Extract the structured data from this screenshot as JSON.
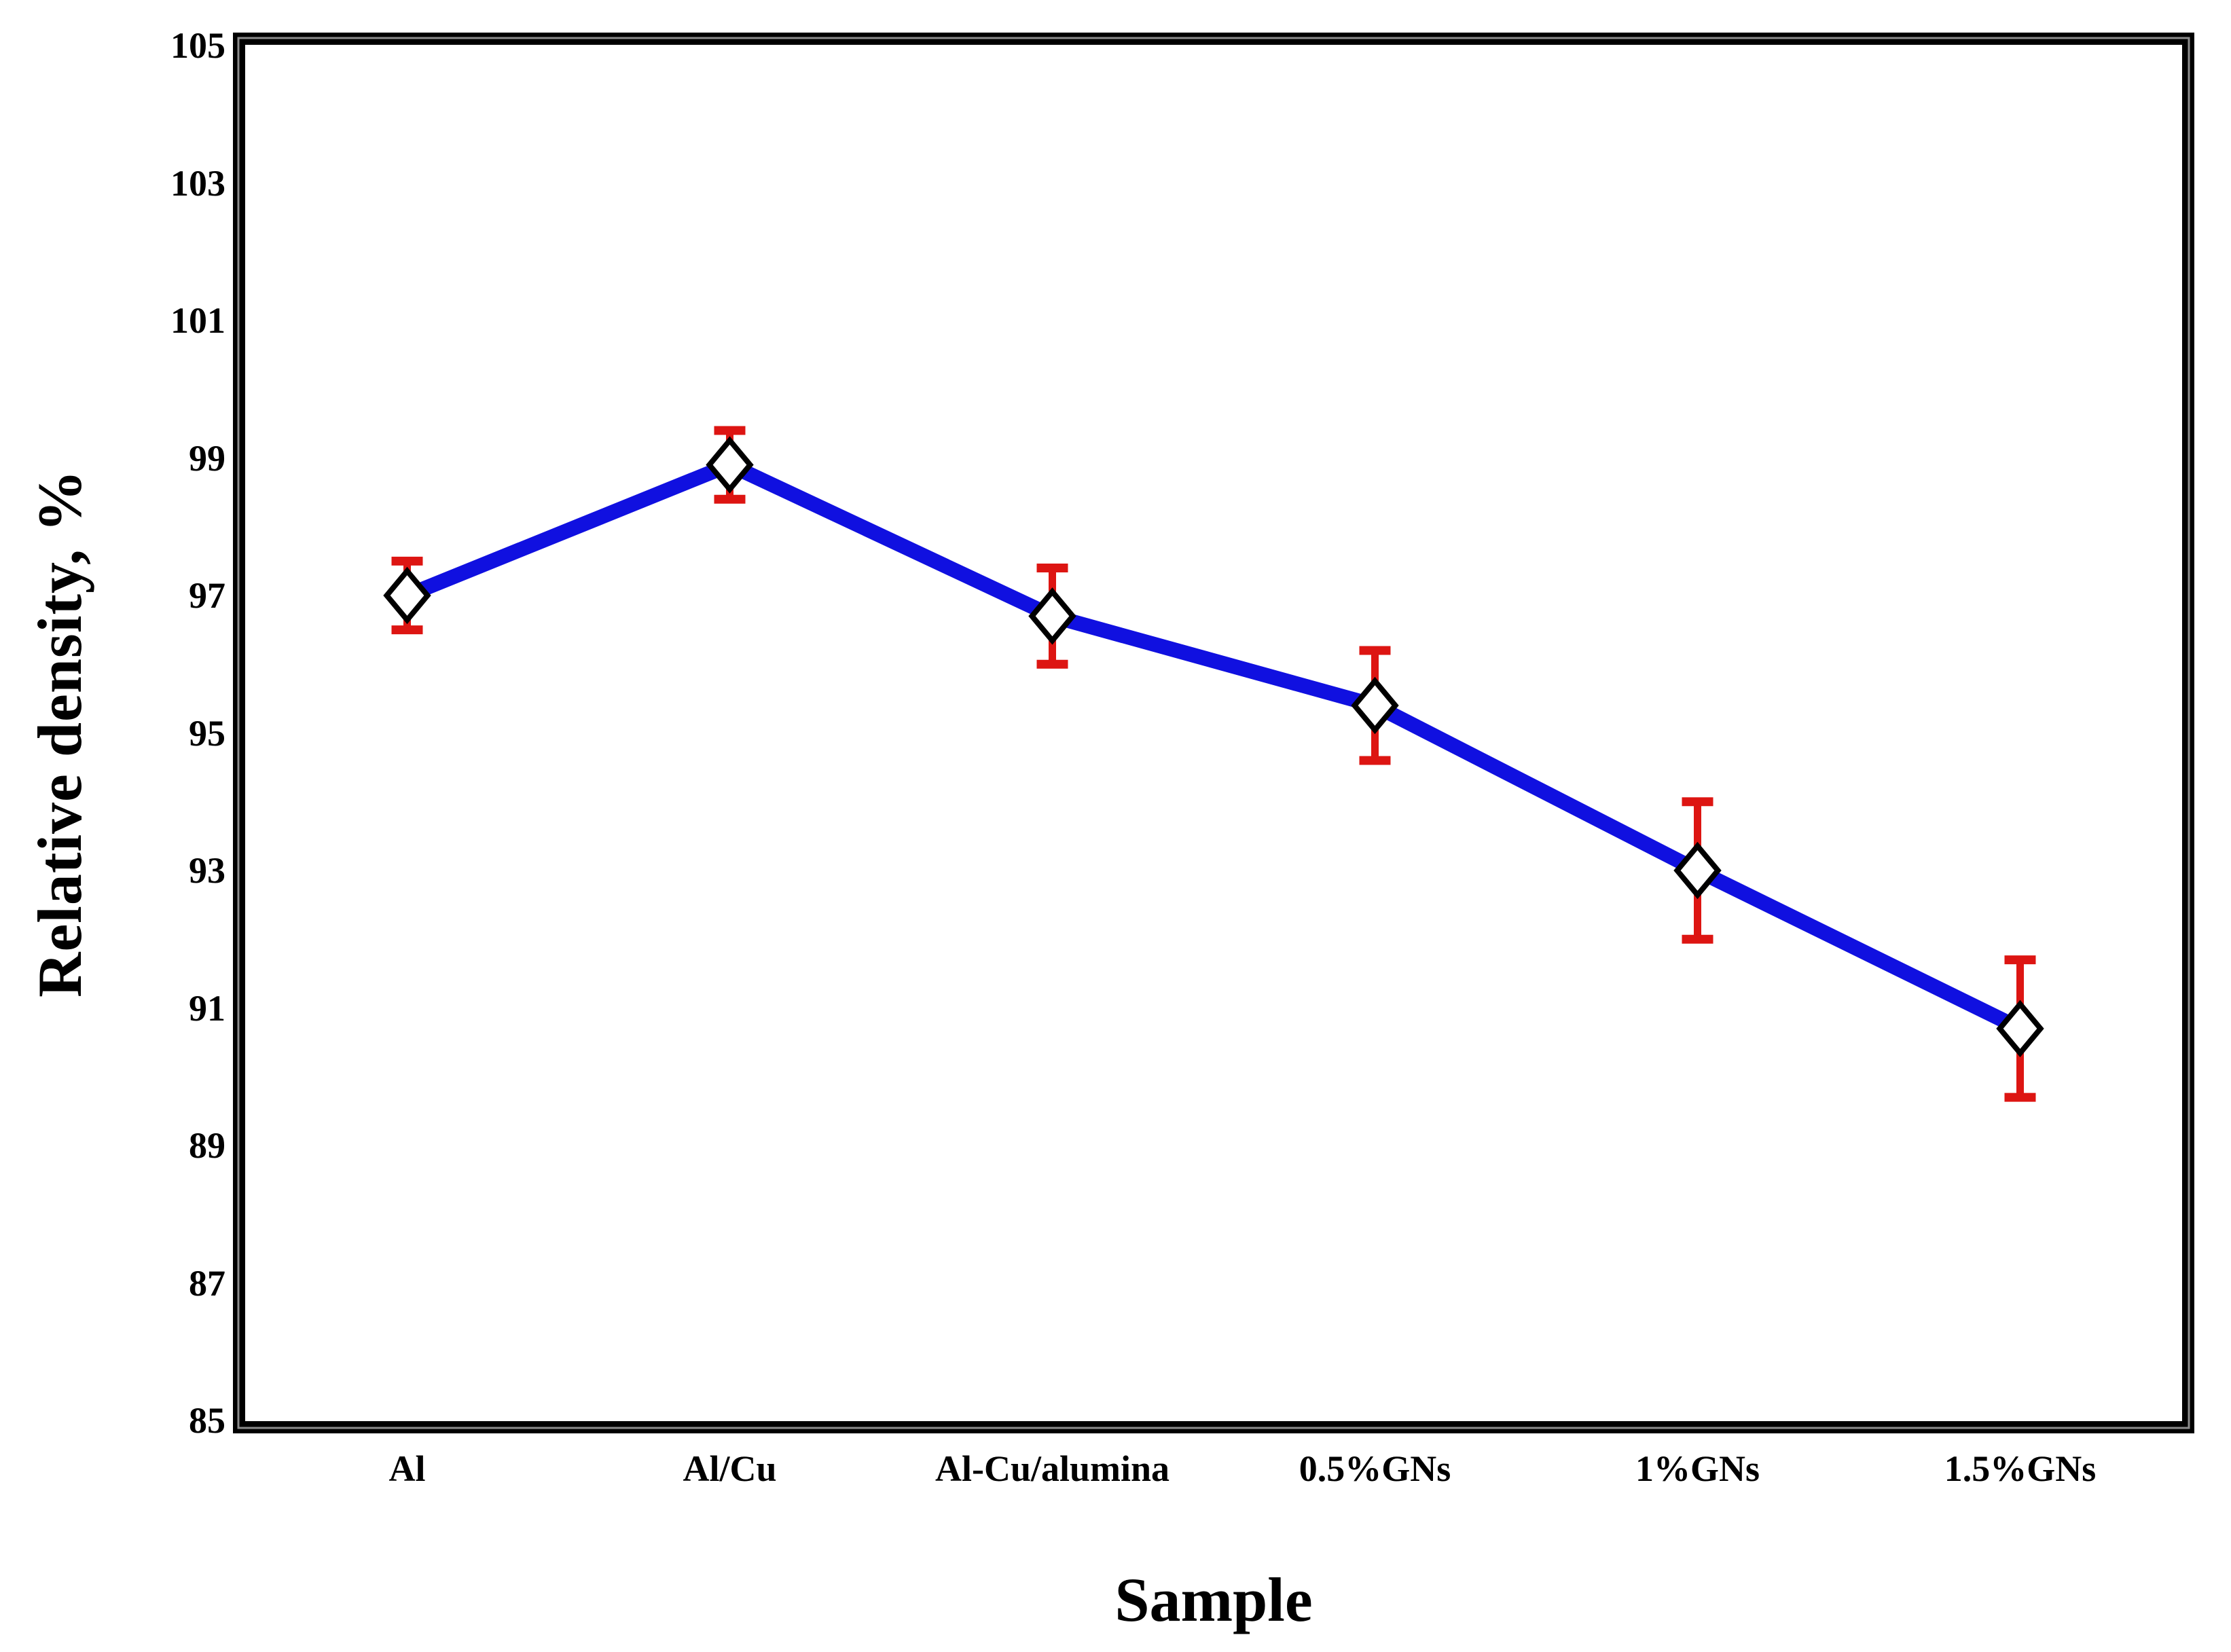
{
  "chart_data": {
    "type": "line",
    "title": "",
    "xlabel": "Sample",
    "ylabel": "Relative density, %",
    "categories": [
      "Al",
      "Al/Cu",
      "Al-Cu/alumina",
      "0.5%GNs",
      "1%GNs",
      "1.5%GNs"
    ],
    "series": [
      {
        "name": "Relative density",
        "values": [
          97.0,
          98.9,
          96.7,
          95.4,
          93.0,
          90.7
        ],
        "errors": [
          0.5,
          0.5,
          0.7,
          0.8,
          1.0,
          1.0
        ]
      }
    ],
    "ylim": [
      85,
      105
    ],
    "yticks": [
      105,
      103,
      101,
      99,
      97,
      95,
      93,
      91,
      89,
      87,
      85
    ],
    "grid": false,
    "legend": false,
    "marker": "diamond",
    "layout_hint": "single series, no gridlines, thick outer frame, error bars both directions",
    "colors": {
      "line": "#1010E0",
      "error_bar": "#DD1512",
      "marker_fill": "#FFFFFF",
      "marker_stroke": "#000000",
      "frame": "#000000",
      "frame_inner_line": "#8C8C8C",
      "text": "#000000",
      "background": "#FFFFFF"
    }
  }
}
